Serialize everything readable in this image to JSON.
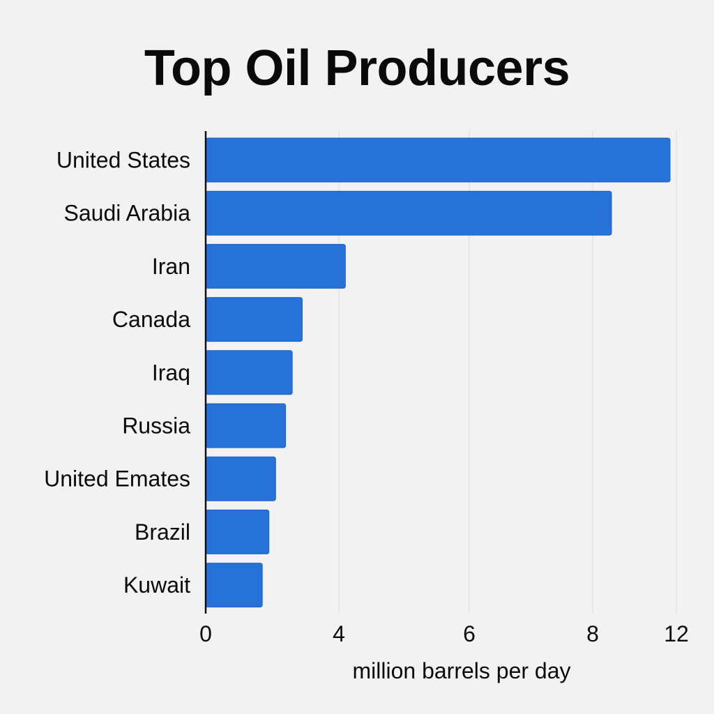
{
  "chart_data": {
    "type": "bar",
    "orientation": "horizontal",
    "title": "Top Oil Producers",
    "xlabel": "million barrels per day",
    "ylabel": "",
    "categories": [
      "United States",
      "Saudi Arabia",
      "Iran",
      "Canada",
      "Iraq",
      "Russia",
      "United Emates",
      "Brazil",
      "Kuwait"
    ],
    "values": [
      11.7,
      8.9,
      4.1,
      2.9,
      2.6,
      2.4,
      2.1,
      1.9,
      1.7
    ],
    "x_ticks": [
      {
        "label": "0",
        "value": 0
      },
      {
        "label": "4",
        "value": 4
      },
      {
        "label": "6",
        "value": 6
      },
      {
        "label": "8",
        "value": 8
      },
      {
        "label": "12",
        "value": 12
      }
    ],
    "grid": true,
    "bar_color": "#2672d8",
    "bar_border_color": "#1f5ec2",
    "grid_color": "#dedede",
    "axis_color": "#111111"
  }
}
